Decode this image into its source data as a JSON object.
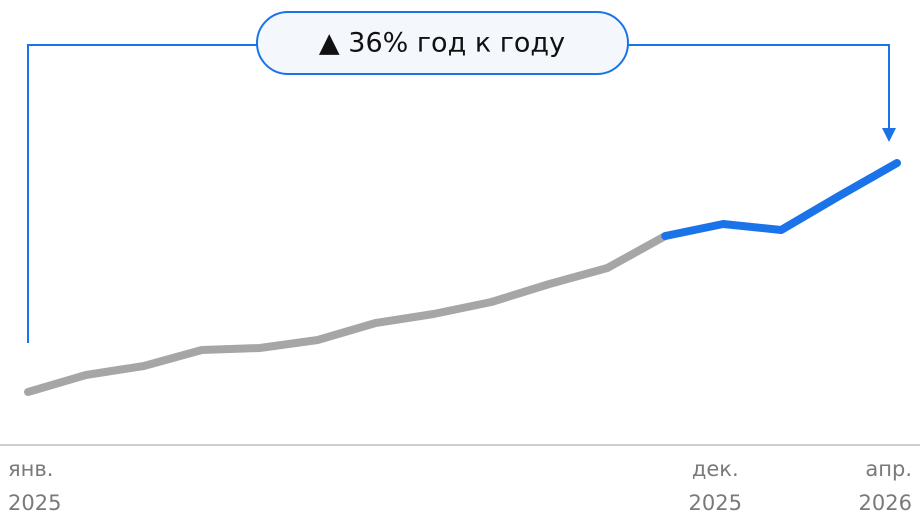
{
  "chart_data": {
    "type": "line",
    "annotation": "▲ 36% год к году",
    "categories": [
      "янв. 2025",
      null,
      null,
      null,
      null,
      null,
      null,
      null,
      null,
      null,
      null,
      "дек. 2025",
      null,
      null,
      null,
      "апр. 2026"
    ],
    "ylim": [
      0,
      300
    ],
    "series": [
      {
        "color": "#a6a6a6",
        "values": [
          8,
          25,
          34,
          50,
          52,
          60,
          77,
          86,
          98,
          116,
          132,
          164,
          null,
          null,
          null,
          null
        ]
      },
      {
        "color": "#1a73e8",
        "values": [
          null,
          null,
          null,
          null,
          null,
          null,
          null,
          null,
          null,
          null,
          null,
          164,
          176,
          170,
          204,
          237
        ]
      }
    ]
  }
}
